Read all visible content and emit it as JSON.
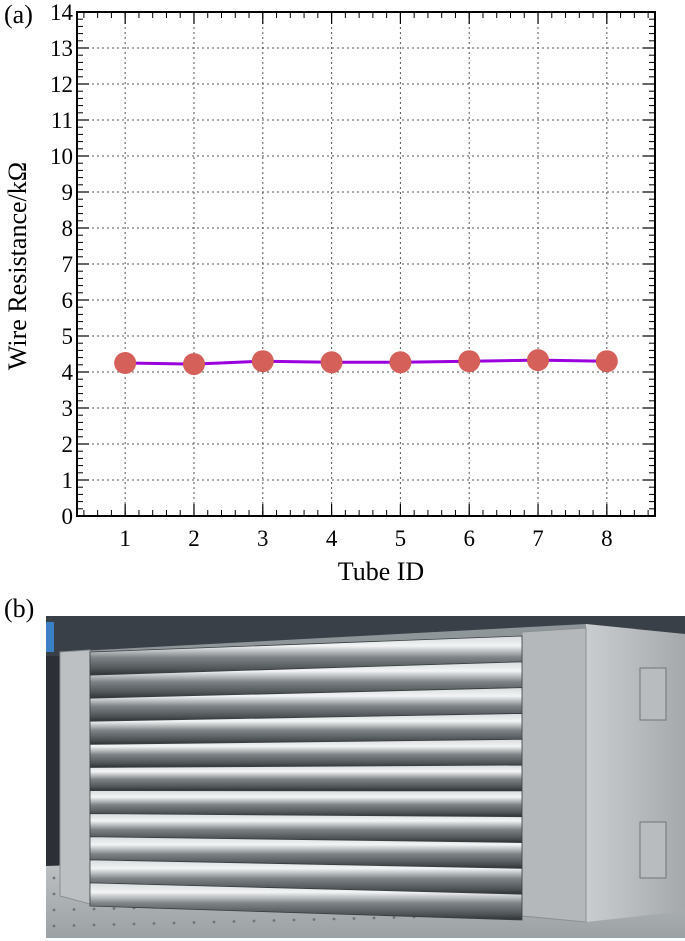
{
  "panels": {
    "a": "(a)",
    "b": "(b)"
  },
  "chart_data": {
    "type": "line",
    "title": "",
    "xlabel": "Tube ID",
    "ylabel": "Wire Resistance/kΩ",
    "x": [
      1,
      2,
      3,
      4,
      5,
      6,
      7,
      8
    ],
    "xticks": [
      "1",
      "2",
      "3",
      "4",
      "5",
      "6",
      "7",
      "8"
    ],
    "xlim": [
      0.3,
      8.7
    ],
    "ylim": [
      0,
      14
    ],
    "yticks": [
      "0",
      "1",
      "2",
      "3",
      "4",
      "5",
      "6",
      "7",
      "8",
      "9",
      "10",
      "11",
      "12",
      "13",
      "14"
    ],
    "grid": true,
    "legend": "none",
    "series": [
      {
        "values": [
          4.25,
          4.22,
          4.3,
          4.27,
          4.27,
          4.3,
          4.33,
          4.3
        ],
        "line_color": "#9900dd",
        "marker_color": "#d5605a"
      }
    ]
  },
  "photo": {
    "frame_color": "#b8bcbf",
    "tube_color": "#8d9396",
    "background_color": "#2c3036",
    "tube_count": 11
  }
}
